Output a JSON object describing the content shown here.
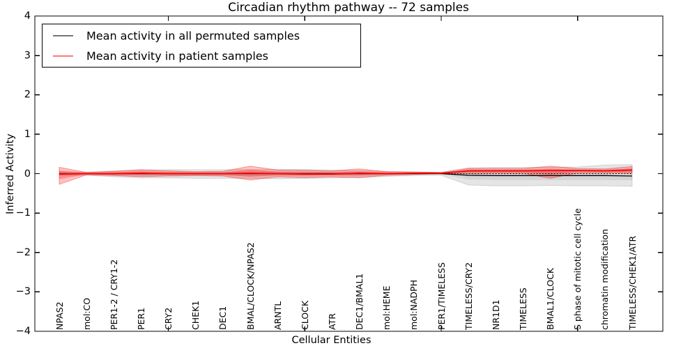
{
  "chart": {
    "title": "Circadian rhythm pathway -- 72 samples",
    "ylabel": "Inferred Activity",
    "xlabel": "Cellular Entities"
  },
  "legend": {
    "items": [
      {
        "label": "Mean activity in all permuted samples",
        "color": "#000000"
      },
      {
        "label": "Mean activity in patient samples",
        "color": "#ff0000"
      }
    ]
  },
  "chart_data": {
    "type": "line",
    "title": "Circadian rhythm pathway -- 72 samples",
    "xlabel": "Cellular Entities",
    "ylabel": "Inferred Activity",
    "ylim": [
      -4,
      4
    ],
    "ytick_values": [
      4,
      3,
      2,
      1,
      0,
      -1,
      -2,
      -3,
      -4
    ],
    "ytick_labels": [
      "4",
      "3",
      "2",
      "1",
      "0",
      "−1",
      "−2",
      "−3",
      "−4"
    ],
    "xtick_indices": [
      4,
      9,
      14,
      19
    ],
    "grid": false,
    "legend_position": "upper left",
    "categories": [
      "NPAS2",
      "mol:CO",
      "PER1-2 / CRY1-2",
      "PER1",
      "CRY2",
      "CHEK1",
      "DEC1",
      "BMAL/CLOCK/NPAS2",
      "ARNTL",
      "CLOCK",
      "ATR",
      "DEC1/BMAL1",
      "mol:HEME",
      "mol:NADPH",
      "PER1/TIMELESS",
      "TIMELESS/CRY2",
      "NR1D1",
      "TIMELESS",
      "BMAL1/CLOCK",
      "S phase of mitotic cell cycle",
      "chromatin modification",
      "TIMELESS/CHEK1/ATR"
    ],
    "series": [
      {
        "name": "Mean activity in all permuted samples",
        "color": "#000000",
        "values": [
          0,
          0,
          0,
          0,
          0,
          0,
          0,
          0,
          0,
          0,
          0,
          0,
          0,
          0,
          0,
          -0.04,
          -0.05,
          -0.05,
          -0.05,
          -0.05,
          -0.05,
          -0.06
        ]
      },
      {
        "name": "Mean activity in patient samples",
        "color": "#ff0000",
        "values": [
          -0.01,
          0,
          0,
          0.01,
          0,
          0,
          0,
          0.01,
          0,
          -0.01,
          -0.01,
          0.01,
          0,
          0.01,
          0.01,
          0.07,
          0.07,
          0.07,
          0.08,
          0.08,
          0.07,
          0.09
        ]
      }
    ],
    "bands": [
      {
        "name": "permuted-std-outer",
        "fill": "rgba(0,0,0,0.10)",
        "stroke": "rgba(0,0,0,0.12)",
        "hi": [
          0.05,
          0.04,
          0.07,
          0.09,
          0.1,
          0.1,
          0.1,
          0.1,
          0.11,
          0.1,
          0.09,
          0.08,
          0.06,
          0.05,
          0.03,
          0.15,
          0.16,
          0.16,
          0.16,
          0.17,
          0.22,
          0.23
        ],
        "lo": [
          -0.05,
          -0.04,
          -0.08,
          -0.1,
          -0.11,
          -0.12,
          -0.12,
          -0.12,
          -0.13,
          -0.12,
          -0.11,
          -0.1,
          -0.07,
          -0.05,
          -0.04,
          -0.29,
          -0.31,
          -0.31,
          -0.3,
          -0.31,
          -0.31,
          -0.32
        ]
      },
      {
        "name": "permuted-std-inner",
        "fill": "rgba(0,0,0,0.07)",
        "stroke": "none",
        "hi": [
          0.03,
          0.02,
          0.04,
          0.05,
          0.05,
          0.05,
          0.05,
          0.05,
          0.06,
          0.05,
          0.05,
          0.04,
          0.03,
          0.03,
          0.02,
          0.08,
          0.08,
          0.08,
          0.08,
          0.09,
          0.11,
          0.12
        ],
        "lo": [
          -0.03,
          -0.02,
          -0.04,
          -0.05,
          -0.06,
          -0.06,
          -0.06,
          -0.06,
          -0.06,
          -0.06,
          -0.05,
          -0.05,
          -0.04,
          -0.03,
          -0.02,
          -0.15,
          -0.16,
          -0.16,
          -0.16,
          -0.16,
          -0.16,
          -0.17
        ]
      },
      {
        "name": "patient-std-outer",
        "fill": "rgba(255,0,0,0.24)",
        "stroke": "rgba(255,0,0,0.38)",
        "hi": [
          0.16,
          0.03,
          0.06,
          0.1,
          0.07,
          0.05,
          0.06,
          0.19,
          0.09,
          0.09,
          0.07,
          0.12,
          0.05,
          0.04,
          0.03,
          0.13,
          0.13,
          0.13,
          0.19,
          0.13,
          0.12,
          0.18
        ],
        "lo": [
          -0.27,
          -0.03,
          -0.05,
          -0.08,
          -0.06,
          -0.05,
          -0.06,
          -0.16,
          -0.08,
          -0.1,
          -0.08,
          -0.1,
          -0.04,
          -0.02,
          0.0,
          0.0,
          0.01,
          0.01,
          -0.12,
          0.02,
          0.02,
          0.01
        ]
      },
      {
        "name": "patient-std-inner",
        "fill": "rgba(255,0,0,0.26)",
        "stroke": "none",
        "hi": [
          0.08,
          0.02,
          0.03,
          0.06,
          0.04,
          0.03,
          0.03,
          0.1,
          0.05,
          0.05,
          0.04,
          0.06,
          0.03,
          0.02,
          0.02,
          0.1,
          0.1,
          0.1,
          0.12,
          0.1,
          0.09,
          0.13
        ],
        "lo": [
          -0.14,
          -0.02,
          -0.03,
          -0.04,
          -0.03,
          -0.03,
          -0.03,
          -0.08,
          -0.04,
          -0.05,
          -0.04,
          -0.05,
          -0.02,
          -0.01,
          0.0,
          0.03,
          0.04,
          0.04,
          -0.03,
          0.05,
          0.05,
          0.04
        ]
      }
    ],
    "zero_line": {
      "value": 0,
      "style": "dotted",
      "color": "#000000"
    }
  }
}
